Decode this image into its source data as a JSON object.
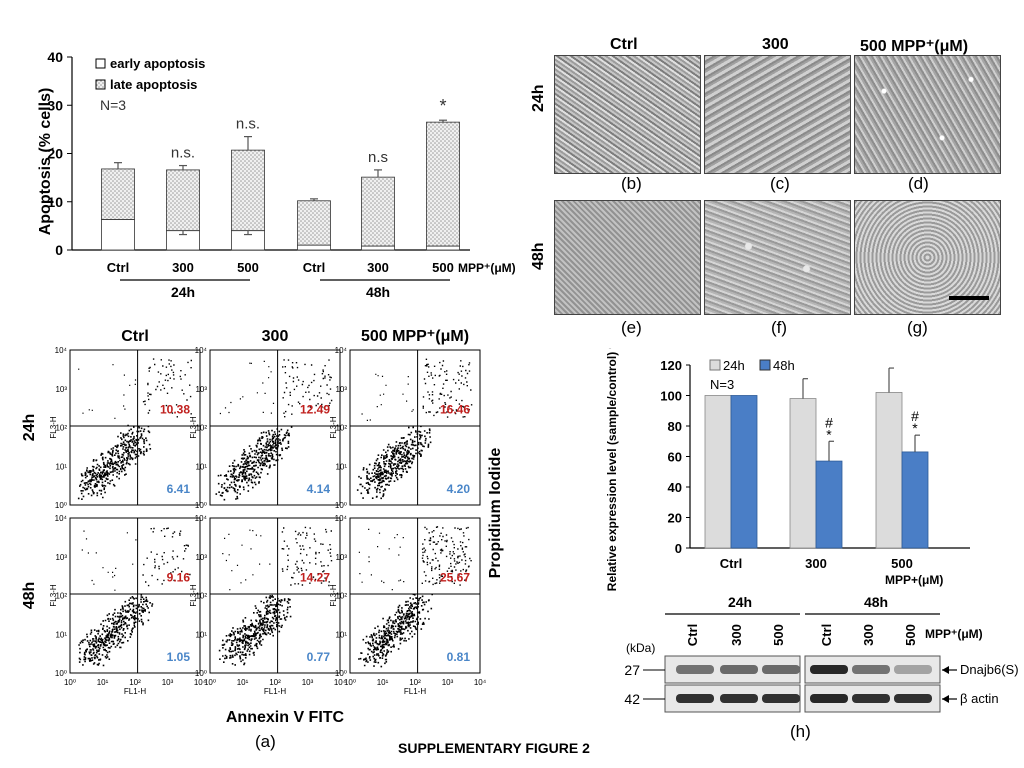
{
  "figure_caption": "SUPPLEMENTARY FIGURE 2",
  "panel_labels": {
    "a": "(a)",
    "b": "(b)",
    "c": "(c)",
    "d": "(d)",
    "e": "(e)",
    "f": "(f)",
    "g": "(g)",
    "h": "(h)"
  },
  "chart_data": [
    {
      "type": "bar",
      "subtype": "stacked",
      "ylabel": "Apoptosis (% cells)",
      "ylim": [
        0,
        40
      ],
      "yticks": [
        "0",
        "10",
        "20",
        "30",
        "40"
      ],
      "categories": [
        "Ctrl",
        "300",
        "500",
        "Ctrl",
        "300",
        "500"
      ],
      "x_unit": "MPP⁺(μM)",
      "groups": [
        {
          "label": "24h"
        },
        {
          "label": "48h"
        }
      ],
      "legend": [
        "early apoptosis",
        "late apoptosis"
      ],
      "n_label": "N=3",
      "series": [
        {
          "name": "early apoptosis",
          "values": [
            6.3,
            4.0,
            4.0,
            1.0,
            0.8,
            0.8
          ],
          "errors": [
            0,
            0.8,
            0.8,
            0,
            0,
            0
          ]
        },
        {
          "name": "late apoptosis",
          "values": [
            10.5,
            12.6,
            16.7,
            9.2,
            14.3,
            25.7
          ],
          "errors": [
            1.3,
            0.9,
            2.8,
            0.4,
            1.5,
            0.4
          ]
        }
      ],
      "annotations": [
        "",
        "n.s.",
        "n.s.",
        "",
        "n.s",
        "*"
      ]
    },
    {
      "type": "bar",
      "subtype": "grouped",
      "ylabel": "Relative expression level (sample/control) %",
      "ylim": [
        0,
        120
      ],
      "yticks": [
        "0",
        "20",
        "40",
        "60",
        "80",
        "100",
        "120"
      ],
      "categories": [
        "Ctrl",
        "300",
        "500"
      ],
      "x_unit": "MPP+(μM)",
      "n_label": "N=3",
      "series": [
        {
          "name": "24h",
          "color": "#dcdcdc",
          "values": [
            100,
            98,
            102
          ],
          "errors": [
            0,
            13,
            16
          ]
        },
        {
          "name": "48h",
          "color": "#4a7ec6",
          "values": [
            100,
            57,
            63
          ],
          "errors": [
            0,
            13,
            11
          ]
        }
      ],
      "annotations": [
        "",
        "#\n*",
        "#\n*"
      ]
    },
    {
      "type": "scatter",
      "subtype": "flow-cytometry-grid",
      "x_axis": "FL1-H",
      "y_axis": "FL3-H",
      "x_title": "Annexin V  FITC",
      "y_title": "Propidium Iodide",
      "columns": [
        "Ctrl",
        "300",
        "500 MPP⁺(μM)"
      ],
      "rows": [
        "24h",
        "48h"
      ],
      "x_ticks": [
        "10⁰",
        "10¹",
        "10²",
        "10³",
        "10⁴"
      ],
      "y_ticks": [
        "10⁰",
        "10¹",
        "10²",
        "10³",
        "10⁴"
      ],
      "quadrant_values": [
        {
          "upper_right": "10.38",
          "lower_right": "6.41"
        },
        {
          "upper_right": "12.49",
          "lower_right": "4.14"
        },
        {
          "upper_right": "16.46",
          "lower_right": "4.20"
        },
        {
          "upper_right": "9.16",
          "lower_right": "1.05"
        },
        {
          "upper_right": "14.27",
          "lower_right": "0.77"
        },
        {
          "upper_right": "25.67",
          "lower_right": "0.81"
        }
      ]
    }
  ],
  "micrographs": {
    "columns": [
      "Ctrl",
      "300",
      "500 MPP⁺(μM)"
    ],
    "rows": [
      "24h",
      "48h"
    ]
  },
  "blot": {
    "groups": [
      "24h",
      "48h"
    ],
    "lanes": [
      "Ctrl",
      "300",
      "500",
      "Ctrl",
      "300",
      "500"
    ],
    "unit_label": "MPP⁺(μM)",
    "kda_label": "(kDa)",
    "rows": [
      {
        "kda": "27",
        "protein": "Dnajb6(S)",
        "intensities": [
          0.55,
          0.6,
          0.6,
          0.95,
          0.55,
          0.3
        ]
      },
      {
        "kda": "42",
        "protein": "β actin",
        "intensities": [
          0.9,
          0.9,
          0.9,
          0.95,
          0.9,
          0.9
        ]
      }
    ]
  },
  "colors": {
    "red_value": "#c0201e",
    "blue_value": "#4a86c8",
    "bar_blue": "#4a7ec6",
    "bar_gray": "#dcdcdc"
  }
}
